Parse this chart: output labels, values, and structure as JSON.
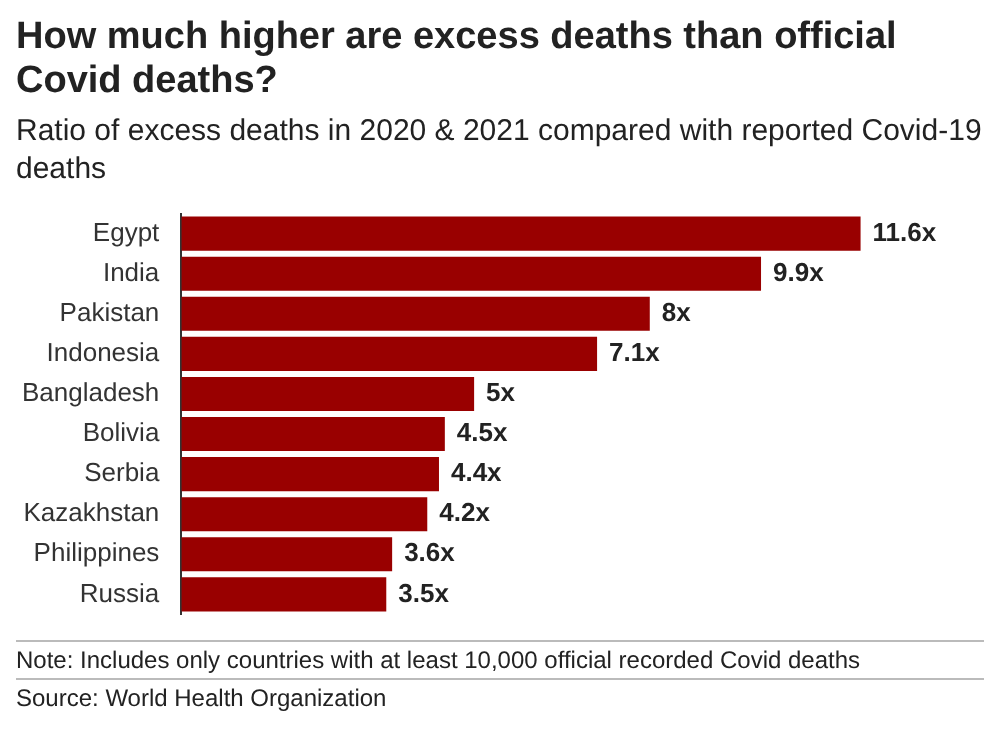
{
  "chart_data": {
    "type": "bar",
    "orientation": "horizontal",
    "title": "How much higher are excess deaths than official Covid deaths?",
    "subtitle": "Ratio of excess deaths in 2020 & 2021 compared with reported Covid-19 deaths",
    "categories": [
      "Egypt",
      "India",
      "Pakistan",
      "Indonesia",
      "Bangladesh",
      "Bolivia",
      "Serbia",
      "Kazakhstan",
      "Philippines",
      "Russia"
    ],
    "values": [
      11.6,
      9.9,
      8,
      7.1,
      5,
      4.5,
      4.4,
      4.2,
      3.6,
      3.5
    ],
    "value_labels": [
      "11.6x",
      "9.9x",
      "8x",
      "7.1x",
      "5x",
      "4.5x",
      "4.4x",
      "4.2x",
      "3.6x",
      "3.5x"
    ],
    "color": "#990000",
    "annotations": [
      "Note: Includes only countries with at least 10,000 official recorded Covid deaths",
      "Source: World Health Organization"
    ]
  }
}
